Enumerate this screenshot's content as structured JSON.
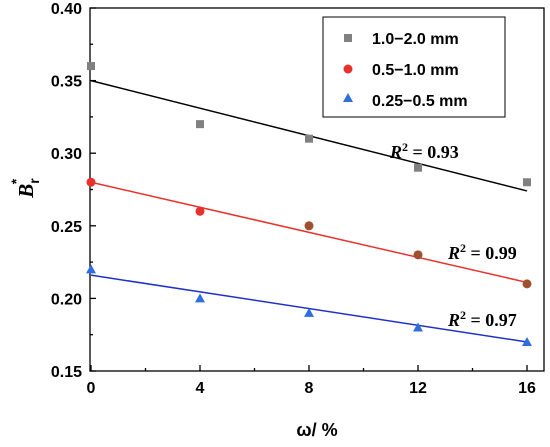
{
  "chart_data": {
    "type": "scatter",
    "xlabel": "ω/ %",
    "ylabel": "B",
    "ylabel_sub": "r",
    "ylabel_sup": "*",
    "xlim": [
      0,
      16
    ],
    "ylim": [
      0.15,
      0.4
    ],
    "xticks": [
      0,
      4,
      8,
      12,
      16
    ],
    "xtick_labels": [
      "0",
      "4",
      "8",
      "12",
      "16"
    ],
    "yticks": [
      0.15,
      0.2,
      0.25,
      0.3,
      0.35,
      0.4
    ],
    "ytick_labels": [
      "0.15",
      "0.20",
      "0.25",
      "0.30",
      "0.35",
      "0.40"
    ],
    "grid": false,
    "legend_position": "top-right",
    "series": [
      {
        "name": "1.0−2.0 mm",
        "marker": "square",
        "color": "#808080",
        "line_color": "#000000",
        "x": [
          0,
          4,
          8,
          12,
          16
        ],
        "y": [
          0.36,
          0.32,
          0.31,
          0.29,
          0.28
        ],
        "fit": [
          0.35,
          0.274
        ],
        "r2_prefix": "R",
        "r2_sup": "2",
        "r2_value": " = 0.93",
        "r2_color": "#000000"
      },
      {
        "name": "0.5−1.0 mm",
        "marker": "circle",
        "color": "#e8312d",
        "point_colors": [
          "#e8312d",
          "#e8312d",
          "#a05030",
          "#a05030",
          "#a05030"
        ],
        "line_color": "#e8312d",
        "x": [
          0,
          4,
          8,
          12,
          16
        ],
        "y": [
          0.28,
          0.26,
          0.25,
          0.23,
          0.21
        ],
        "fit": [
          0.28,
          0.211
        ],
        "r2_prefix": "R",
        "r2_sup": "2",
        "r2_value": " = 0.99",
        "r2_color": "#9a3412"
      },
      {
        "name": "0.25−0.5 mm",
        "marker": "triangle",
        "color": "#2f6fdb",
        "line_color": "#1f32c8",
        "x": [
          0,
          4,
          8,
          12,
          16
        ],
        "y": [
          0.22,
          0.2,
          0.19,
          0.18,
          0.17
        ],
        "fit": [
          0.216,
          0.17
        ],
        "r2_prefix": "R",
        "r2_sup": "2",
        "r2_value": " = 0.97",
        "r2_color": "#1f32c8"
      }
    ]
  }
}
